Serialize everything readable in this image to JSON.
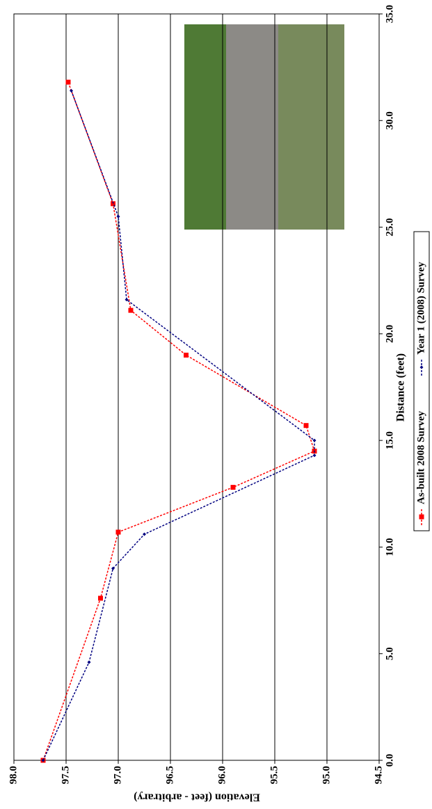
{
  "chart_data": {
    "type": "line",
    "x_label": "Distance (feet)",
    "y_label": "Elevation (feet - arbitrary)",
    "xlim": [
      0,
      35
    ],
    "xticks": [
      {
        "value": 0,
        "label": "0.0"
      },
      {
        "value": 5,
        "label": "5.0"
      },
      {
        "value": 10,
        "label": "10.0"
      },
      {
        "value": 15,
        "label": "15.0"
      },
      {
        "value": 20,
        "label": "20.0"
      },
      {
        "value": 25,
        "label": "25.0"
      },
      {
        "value": 30,
        "label": "30.0"
      },
      {
        "value": 35,
        "label": "35.0"
      }
    ],
    "ylim": [
      94.5,
      98
    ],
    "yticks": [
      94.5,
      {
        "value": 95,
        "label": "95.0"
      },
      95.5,
      {
        "value": 96,
        "label": "96.0"
      },
      96.5,
      {
        "value": 97,
        "label": "97.0"
      },
      97.5,
      {
        "value": 98,
        "label": "98.0"
      }
    ],
    "grid": true,
    "legend": "bottom",
    "series": [
      {
        "name": "As-built 2008 Survey",
        "color": "#ff0000",
        "marker": "square",
        "x": [
          0,
          7.6,
          10.7,
          12.8,
          14.5,
          15.7,
          19.0,
          21.1,
          26.1,
          31.8
        ],
        "values": [
          97.72,
          97.17,
          97.0,
          95.9,
          95.12,
          95.2,
          96.35,
          96.88,
          97.05,
          97.48
        ]
      },
      {
        "name": "Year 1 (2008) Survey",
        "color": "#000080",
        "marker": "diamond",
        "x": [
          0,
          4.6,
          9.0,
          10.6,
          14.3,
          15.0,
          21.6,
          25.5,
          31.4
        ],
        "values": [
          97.72,
          97.28,
          97.05,
          96.75,
          95.12,
          95.12,
          96.92,
          97.0,
          97.45
        ]
      }
    ]
  }
}
